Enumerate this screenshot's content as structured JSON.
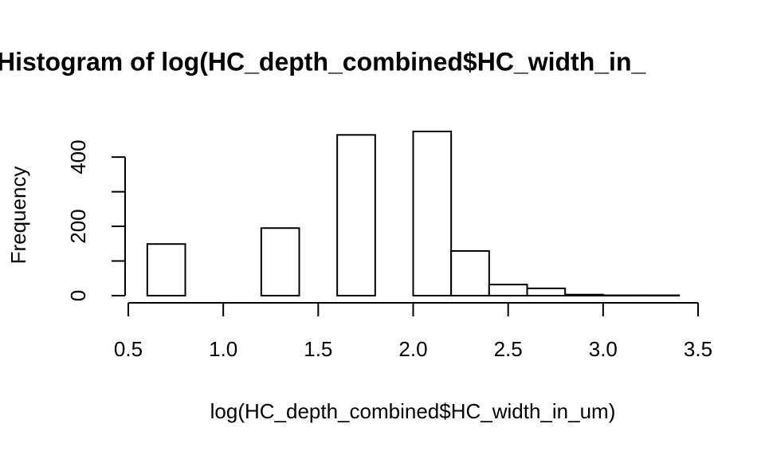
{
  "chart_data": {
    "type": "histogram",
    "title": "Histogram of log(HC_depth_combined$HC_width_in_",
    "x_label": "log(HC_depth_combined$HC_width_in_um)",
    "y_label": "Frequency",
    "bins": [
      0.6,
      0.8,
      1.0,
      1.2,
      1.4,
      1.6,
      1.8,
      2.0,
      2.2,
      2.4,
      2.6,
      2.8,
      3.0,
      3.2,
      3.4
    ],
    "values": [
      149,
      0,
      0,
      195,
      0,
      464,
      0,
      474,
      129,
      32,
      21,
      3,
      1,
      1
    ],
    "color": "#ffffff",
    "edge_color": "#000000",
    "xlim": [
      0.5,
      3.5
    ],
    "xticks": [
      0.5,
      {
        "value": 1,
        "label": "1.0"
      },
      1.5,
      {
        "value": 2,
        "label": "2.0"
      },
      2.5,
      {
        "value": 3,
        "label": "3.0"
      },
      3.5
    ],
    "ylim": [
      0,
      490
    ],
    "yticks": [
      0,
      200,
      400
    ],
    "yminor_ticks": [
      100,
      300
    ]
  }
}
